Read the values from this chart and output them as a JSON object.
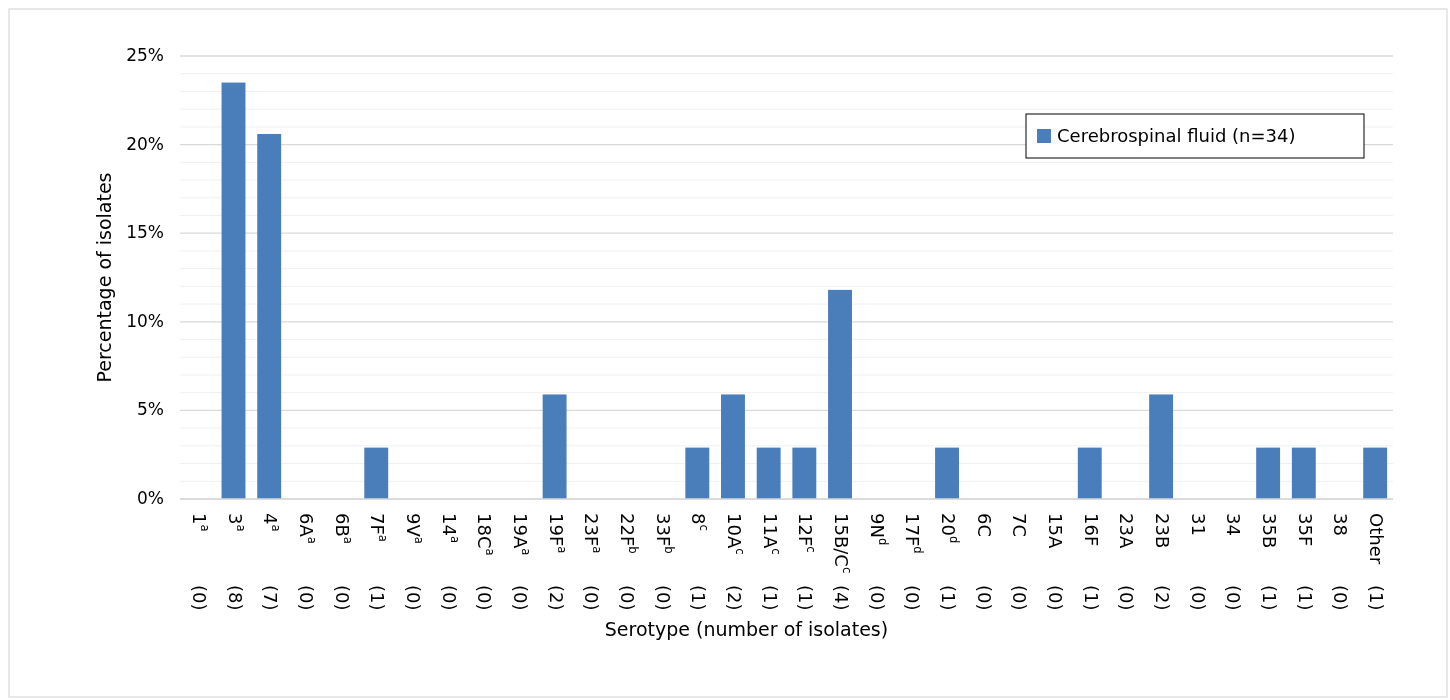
{
  "chart_data": {
    "type": "bar",
    "xlabel": "Serotype (number of isolates)",
    "ylabel": "Percentage of isolates",
    "categories": [
      "1$^{a}$\n(0)",
      "3$^{a}$\n(8)",
      "4$^{a}$\n(7)",
      "6A$^{a}$\n(0)",
      "6B$^{a}$\n(0)",
      "7F$^{a}$\n(1)",
      "9V$^{a}$\n(0)",
      "14$^{a}$\n(0)",
      "18C$^{a}$\n(0)",
      "19A$^{a}$\n(0)",
      "19F$^{a}$\n(2)",
      "23F$^{a}$\n(0)",
      "22F$^{b}$\n(0)",
      "33F$^{b}$\n(0)",
      "8$^{c}$\n(1)",
      "10A$^{c}$\n(2)",
      "11A$^{c}$\n(1)",
      "12F$^{c}$\n(1)",
      "15B/C$^{c}$\n(4)",
      "9N$^{d}$\n(0)",
      "17F$^{d}$\n(0)",
      "20$^{d}$\n(1)",
      "6C\n(0)",
      "7C\n(0)",
      "15A\n(0)",
      "16F\n(1)",
      "23A\n(0)",
      "23B\n(2)",
      "31\n(0)",
      "34\n(0)",
      "35B\n(1)",
      "35F\n(1)",
      "38\n(0)",
      "Other\n(1)"
    ],
    "series": [
      {
        "name": "Cerebrospinal fluid (n=34)",
        "color": "#4a7ebb",
        "values": [
          0,
          23.5,
          20.6,
          0,
          0,
          2.9,
          0,
          0,
          0,
          0,
          5.9,
          0,
          0,
          0,
          2.9,
          5.9,
          2.9,
          2.9,
          11.8,
          0,
          0,
          2.9,
          0,
          0,
          0,
          2.9,
          0,
          5.9,
          0,
          0,
          2.9,
          2.9,
          0,
          2.9
        ]
      }
    ],
    "ylim": [
      0,
      25
    ],
    "yticks": [
      {
        "value": 0,
        "label": "0%"
      },
      {
        "value": 1,
        "label": null
      },
      {
        "value": 2,
        "label": null
      },
      {
        "value": 3,
        "label": null
      },
      {
        "value": 4,
        "label": null
      },
      {
        "value": 5,
        "label": "5%"
      },
      {
        "value": 6,
        "label": null
      },
      {
        "value": 7,
        "label": null
      },
      {
        "value": 8,
        "label": null
      },
      {
        "value": 9,
        "label": null
      },
      {
        "value": 10,
        "label": "10%"
      },
      {
        "value": 11,
        "label": null
      },
      {
        "value": 12,
        "label": null
      },
      {
        "value": 13,
        "label": null
      },
      {
        "value": 14,
        "label": null
      },
      {
        "value": 15,
        "label": "15%"
      },
      {
        "value": 16,
        "label": null
      },
      {
        "value": 17,
        "label": null
      },
      {
        "value": 18,
        "label": null
      },
      {
        "value": 19,
        "label": null
      },
      {
        "value": 20,
        "label": "20%"
      },
      {
        "value": 21,
        "label": null
      },
      {
        "value": 22,
        "label": null
      },
      {
        "value": 23,
        "label": null
      },
      {
        "value": 24,
        "label": null
      },
      {
        "value": 25,
        "label": "25%"
      }
    ],
    "grid": "y",
    "legend": "top right"
  }
}
